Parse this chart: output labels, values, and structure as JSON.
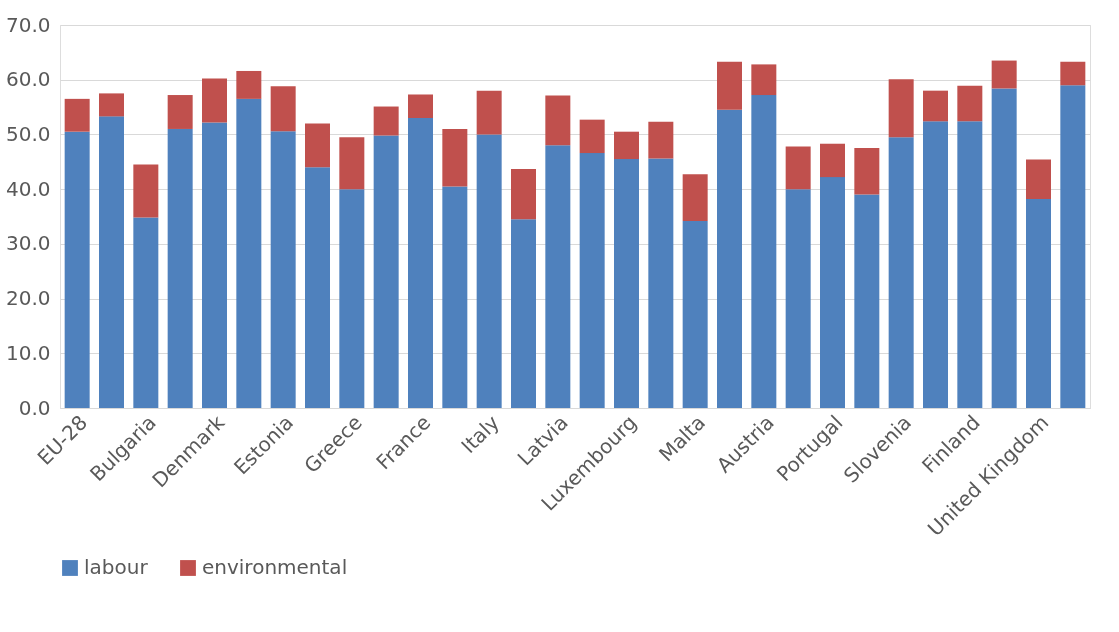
{
  "chart_data": {
    "type": "bar",
    "stacked": true,
    "categories": [
      "EU-28",
      null,
      "Bulgaria",
      null,
      "Denmark",
      null,
      "Estonia",
      null,
      "Greece",
      null,
      "France",
      null,
      "Italy",
      null,
      "Latvia",
      null,
      "Luxembourg",
      null,
      "Malta",
      null,
      "Austria",
      null,
      "Portugal",
      null,
      "Slovenia",
      null,
      "Finland",
      null,
      "United Kingdom",
      null
    ],
    "series": [
      {
        "name": "labour",
        "color": "#4f81bd",
        "values": [
          50.5,
          53.3,
          34.8,
          51.0,
          52.2,
          56.5,
          50.6,
          44.0,
          40.0,
          49.8,
          53.0,
          40.5,
          50.0,
          34.5,
          48.0,
          46.6,
          45.5,
          45.6,
          34.2,
          54.5,
          57.2,
          40.0,
          42.2,
          39.0,
          49.5,
          52.4,
          52.4,
          58.4,
          38.2,
          59.0
        ]
      },
      {
        "name": "environmental",
        "color": "#c0504d",
        "values": [
          6.0,
          4.2,
          9.7,
          6.2,
          8.0,
          5.1,
          8.2,
          8.0,
          9.5,
          5.3,
          4.3,
          10.5,
          8.0,
          9.2,
          9.1,
          6.1,
          5.0,
          6.7,
          8.5,
          8.8,
          5.6,
          7.8,
          6.1,
          8.5,
          10.6,
          5.6,
          6.5,
          5.1,
          7.2,
          4.3
        ]
      }
    ],
    "ylim": [
      0,
      70
    ],
    "yticks": [
      {
        "value": 0,
        "label": "0.0"
      },
      {
        "value": 10,
        "label": "10.0"
      },
      {
        "value": 20,
        "label": "20.0"
      },
      {
        "value": 30,
        "label": "30.0"
      },
      {
        "value": 40,
        "label": "40.0"
      },
      {
        "value": 50,
        "label": "50.0"
      },
      {
        "value": 60,
        "label": "60.0"
      },
      {
        "value": 70,
        "label": "70.0"
      }
    ],
    "grid": "y",
    "legend": "bottom"
  }
}
